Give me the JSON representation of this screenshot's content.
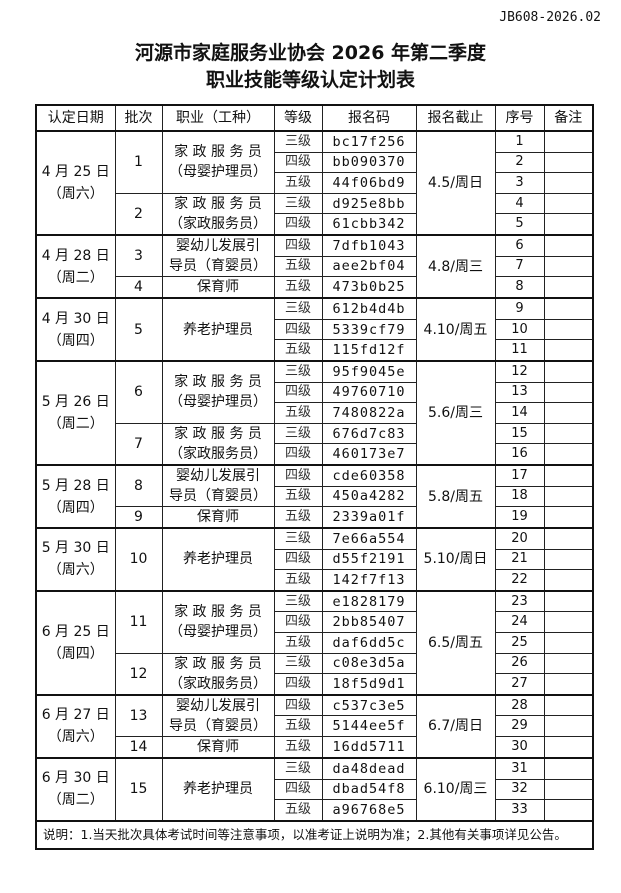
{
  "doc_no": "JB608-2026.02",
  "title_line1": "河源市家庭服务业协会 2026 年第二季度",
  "title_line2": "职业技能等级认定计划表",
  "headers": [
    "认定日期",
    "批次",
    "职业（工种）",
    "等级",
    "报名码",
    "报名截止",
    "序号",
    "备注"
  ],
  "groups": [
    {
      "date": [
        "4 月 25 日",
        "（周六）"
      ],
      "deadline": "4.5/周日",
      "batches": [
        {
          "no": "1",
          "job": [
            "家 政 服 务 员",
            "（母婴护理员）"
          ],
          "rows": [
            [
              "三级",
              "bc17f256",
              "1"
            ],
            [
              "四级",
              "bb090370",
              "2"
            ],
            [
              "五级",
              "44f06bd9",
              "3"
            ]
          ]
        },
        {
          "no": "2",
          "job": [
            "家 政 服 务 员",
            "（家政服务员）"
          ],
          "rows": [
            [
              "三级",
              "d925e8bb",
              "4"
            ],
            [
              "四级",
              "61cbb342",
              "5"
            ]
          ]
        }
      ]
    },
    {
      "date": [
        "4 月 28 日",
        "（周二）"
      ],
      "deadline": "4.8/周三",
      "batches": [
        {
          "no": "3",
          "job": [
            "婴幼儿发展引",
            "导员（育婴员）"
          ],
          "rows": [
            [
              "四级",
              "7dfb1043",
              "6"
            ],
            [
              "五级",
              "aee2bf04",
              "7"
            ]
          ]
        },
        {
          "no": "4",
          "job": [
            "保育师"
          ],
          "rows": [
            [
              "五级",
              "473b0b25",
              "8"
            ]
          ]
        }
      ]
    },
    {
      "date": [
        "4 月 30 日",
        "（周四）"
      ],
      "deadline": "4.10/周五",
      "batches": [
        {
          "no": "5",
          "job": [
            "养老护理员"
          ],
          "rows": [
            [
              "三级",
              "612b4d4b",
              "9"
            ],
            [
              "四级",
              "5339cf79",
              "10"
            ],
            [
              "五级",
              "115fd12f",
              "11"
            ]
          ]
        }
      ]
    },
    {
      "date": [
        "5 月 26 日",
        "（周二）"
      ],
      "deadline": "5.6/周三",
      "batches": [
        {
          "no": "6",
          "job": [
            "家 政 服 务 员",
            "（母婴护理员）"
          ],
          "rows": [
            [
              "三级",
              "95f9045e",
              "12"
            ],
            [
              "四级",
              "49760710",
              "13"
            ],
            [
              "五级",
              "7480822a",
              "14"
            ]
          ]
        },
        {
          "no": "7",
          "job": [
            "家 政 服 务 员",
            "（家政服务员）"
          ],
          "rows": [
            [
              "三级",
              "676d7c83",
              "15"
            ],
            [
              "四级",
              "460173e7",
              "16"
            ]
          ]
        }
      ]
    },
    {
      "date": [
        "5 月 28 日",
        "（周四）"
      ],
      "deadline": "5.8/周五",
      "batches": [
        {
          "no": "8",
          "job": [
            "婴幼儿发展引",
            "导员（育婴员）"
          ],
          "rows": [
            [
              "四级",
              "cde60358",
              "17"
            ],
            [
              "五级",
              "450a4282",
              "18"
            ]
          ]
        },
        {
          "no": "9",
          "job": [
            "保育师"
          ],
          "rows": [
            [
              "五级",
              "2339a01f",
              "19"
            ]
          ]
        }
      ]
    },
    {
      "date": [
        "5 月 30 日",
        "（周六）"
      ],
      "deadline": "5.10/周日",
      "batches": [
        {
          "no": "10",
          "job": [
            "养老护理员"
          ],
          "rows": [
            [
              "三级",
              "7e66a554",
              "20"
            ],
            [
              "四级",
              "d55f2191",
              "21"
            ],
            [
              "五级",
              "142f7f13",
              "22"
            ]
          ]
        }
      ]
    },
    {
      "date": [
        "6 月 25 日",
        "（周四）"
      ],
      "deadline": "6.5/周五",
      "batches": [
        {
          "no": "11",
          "job": [
            "家 政 服 务 员",
            "（母婴护理员）"
          ],
          "rows": [
            [
              "三级",
              "e1828179",
              "23"
            ],
            [
              "四级",
              "2bb85407",
              "24"
            ],
            [
              "五级",
              "daf6dd5c",
              "25"
            ]
          ]
        },
        {
          "no": "12",
          "job": [
            "家 政 服 务 员",
            "（家政服务员）"
          ],
          "rows": [
            [
              "三级",
              "c08e3d5a",
              "26"
            ],
            [
              "四级",
              "18f5d9d1",
              "27"
            ]
          ]
        }
      ]
    },
    {
      "date": [
        "6 月 27 日",
        "（周六）"
      ],
      "deadline": "6.7/周日",
      "batches": [
        {
          "no": "13",
          "job": [
            "婴幼儿发展引",
            "导员（育婴员）"
          ],
          "rows": [
            [
              "四级",
              "c537c3e5",
              "28"
            ],
            [
              "五级",
              "5144ee5f",
              "29"
            ]
          ]
        },
        {
          "no": "14",
          "job": [
            "保育师"
          ],
          "rows": [
            [
              "五级",
              "16dd5711",
              "30"
            ]
          ]
        }
      ]
    },
    {
      "date": [
        "6 月 30 日",
        "（周二）"
      ],
      "deadline": "6.10/周三",
      "batches": [
        {
          "no": "15",
          "job": [
            "养老护理员"
          ],
          "rows": [
            [
              "三级",
              "da48dead",
              "31"
            ],
            [
              "四级",
              "dbad54f8",
              "32"
            ],
            [
              "五级",
              "a96768e5",
              "33"
            ]
          ]
        }
      ]
    }
  ],
  "footnote": "说明：1.当天批次具体考试时间等注意事项，以准考证上说明为准；2.其他有关事项详见公告。"
}
